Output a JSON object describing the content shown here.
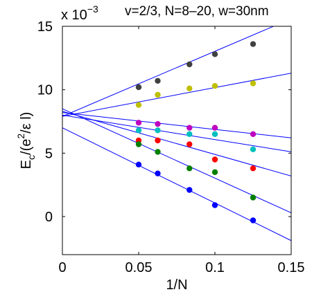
{
  "chart_data": {
    "type": "scatter",
    "title": "v=2/3, N=8–20, w=30nm",
    "exponent_label": "x 10",
    "exponent_power": "−3",
    "xlabel": "1/N",
    "ylabel_main": "E",
    "ylabel_sub": "c",
    "ylabel_rest": "/(e",
    "ylabel_sup": "2",
    "ylabel_end": "/ε l)",
    "xlim": [
      0,
      0.15
    ],
    "ylim": [
      -3,
      15
    ],
    "x_ticks": [
      0,
      0.05,
      0.1,
      0.15
    ],
    "x_tick_labels": [
      "0",
      "0.05",
      "0.1",
      "0.15"
    ],
    "y_ticks": [
      0,
      5,
      10,
      15
    ],
    "y_tick_labels": [
      "0",
      "5",
      "10",
      "15"
    ],
    "grid": false,
    "line_color": "#0000ff",
    "x": [
      0.05,
      0.0625,
      0.0833,
      0.1,
      0.125
    ],
    "series": [
      {
        "color": "#404040",
        "values": [
          10.2,
          10.7,
          12.0,
          12.8,
          13.6
        ],
        "fit": [
          7.9,
          51.3
        ]
      },
      {
        "color": "#bfbf00",
        "values": [
          8.8,
          9.6,
          10.1,
          10.3,
          10.5
        ],
        "fit": [
          7.9,
          22.7
        ]
      },
      {
        "color": "#bf00bf",
        "values": [
          7.4,
          7.3,
          7.0,
          7.0,
          6.5
        ],
        "fit": [
          8.2,
          -13.3
        ]
      },
      {
        "color": "#00bfbf",
        "values": [
          6.8,
          6.8,
          6.5,
          6.5,
          5.3
        ],
        "fit": [
          8.0,
          -19.3
        ]
      },
      {
        "color": "#ff0000",
        "values": [
          6.0,
          6.0,
          5.7,
          4.5,
          3.8
        ],
        "fit": [
          8.3,
          -34.0
        ]
      },
      {
        "color": "#008000",
        "values": [
          5.7,
          5.1,
          3.8,
          3.5,
          1.5
        ],
        "fit": [
          8.5,
          -54.7
        ]
      },
      {
        "color": "#0000ff",
        "values": [
          4.1,
          3.4,
          2.1,
          0.9,
          -0.3
        ],
        "fit": [
          7.0,
          -59.3
        ]
      }
    ]
  }
}
